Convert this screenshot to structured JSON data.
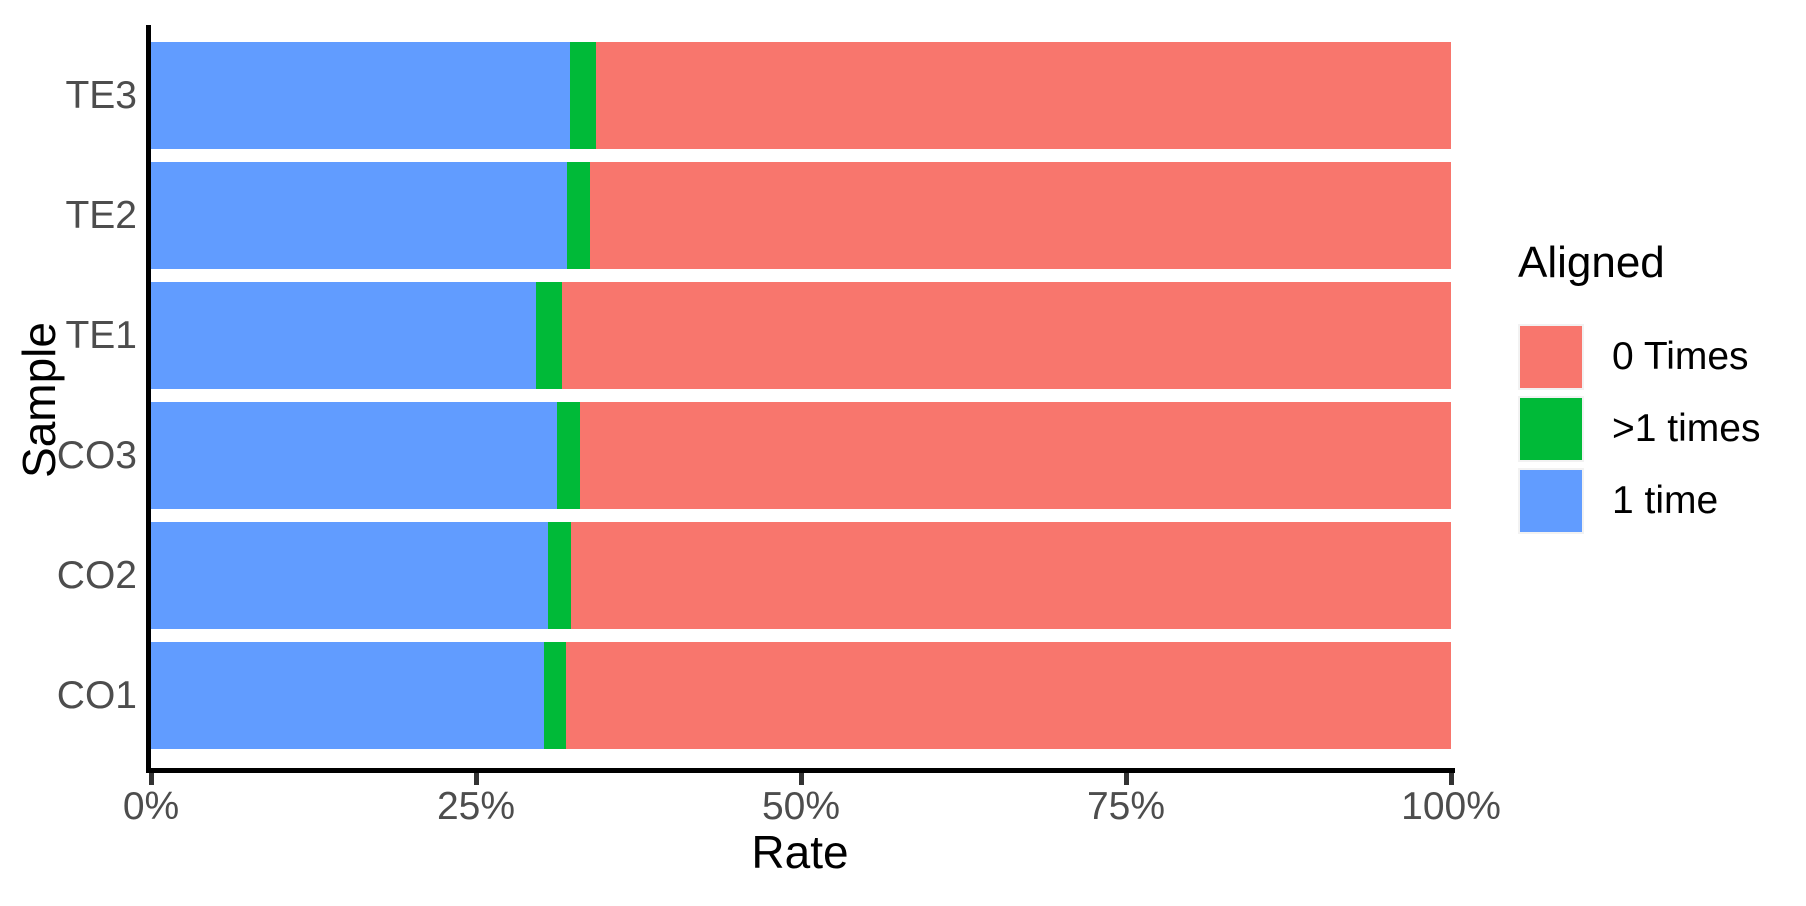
{
  "chart_data": {
    "type": "bar",
    "orientation": "horizontal",
    "stacked": true,
    "title": "",
    "xlabel": "Rate",
    "ylabel": "Sample",
    "xlim": [
      0,
      100
    ],
    "grid": false,
    "x_ticks": [
      {
        "value": 0,
        "label": "0%"
      },
      {
        "value": 25,
        "label": "25%"
      },
      {
        "value": 50,
        "label": "50%"
      },
      {
        "value": 75,
        "label": "75%"
      },
      {
        "value": 100,
        "label": "100%"
      }
    ],
    "categories": [
      "TE3",
      "TE2",
      "TE1",
      "CO3",
      "CO2",
      "CO1"
    ],
    "series": [
      {
        "name": "1 time",
        "color": "#619CFF",
        "values": [
          32.2,
          32.0,
          29.6,
          31.2,
          30.5,
          30.2
        ]
      },
      {
        "name": ">1 times",
        "color": "#00BA38",
        "values": [
          2.0,
          1.8,
          2.0,
          1.8,
          1.8,
          1.7
        ]
      },
      {
        "name": "0 Times",
        "color": "#F8766D",
        "values": [
          65.8,
          66.2,
          68.4,
          67.0,
          67.7,
          68.1
        ]
      }
    ],
    "legend": {
      "title": "Aligned",
      "position": "right",
      "entries": [
        {
          "label": "0 Times",
          "color": "#F8766D"
        },
        {
          "label": ">1 times",
          "color": "#00BA38"
        },
        {
          "label": "1 time",
          "color": "#619CFF"
        }
      ]
    },
    "colors": {
      "axis_line": "#000000",
      "tick_text": "#4D4D4D",
      "title_text": "#000000",
      "background": "#FFFFFF"
    }
  }
}
